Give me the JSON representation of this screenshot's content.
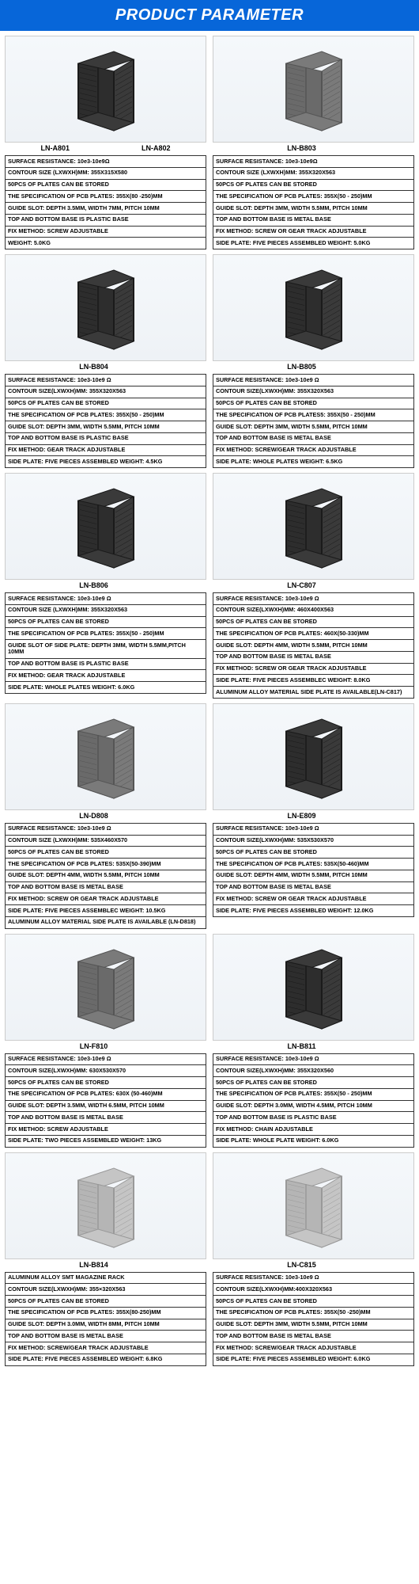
{
  "header": "PRODUCT PARAMETER",
  "products": [
    {
      "labels": [
        "LN-A801",
        "LN-A802"
      ],
      "rack_style": "dark",
      "specs": [
        "SURFACE RESISTANCE: 10e3-10e9Ω",
        "CONTOUR SIZE (LXWXH)MM: 355X315X580",
        "50PCS OF PLATES CAN BE STORED",
        "THE SPECIFICATION OF PCB PLATES: 355X(80 -250)MM",
        "GUIDE SLOT: DEPTH 3.5MM, WIDTH 7MM, PITCH 10MM",
        "TOP AND BOTTOM BASE IS PLASTIC BASE",
        "FIX METHOD: SCREW ADJUSTABLE",
        "WEIGHT: 5.0KG"
      ]
    },
    {
      "labels": [
        "LN-B803"
      ],
      "rack_style": "medium",
      "specs": [
        "SURFACE RESISTANCE: 10e3-10e9Ω",
        "CONTOUR SIZE (LXWXH)MM: 355X320X563",
        "50PCS OF PLATES CAN BE STORED",
        "THE SPECIFICATION OF PCB PLATES: 355X(50 - 250)MM",
        "GUIDE SLOT: DEPTH 3MM, WIDTH 5.5MM, PITCH 10MM",
        "TOP AND BOTTOM BASE IS METAL BASE",
        "FIX METHOD: SCREW OR GEAR TRACK ADJUSTABLE",
        "SIDE PLATE: FIVE PIECES ASSEMBLED    WEIGHT: 5.0KG"
      ]
    },
    {
      "labels": [
        "LN-B804"
      ],
      "rack_style": "dark",
      "specs": [
        "SURFACE RESISTANCE: 10e3-10e9 Ω",
        "CONTOUR SIZE(LXWXH)MM: 355X320X563",
        "50PCS OF PLATES CAN BE STORED",
        "THE SPECIFICATION OF PCB PLATES: 355X(50 - 250)MM",
        "GUIDE SLOT: DEPTH 3MM, WIDTH 5.5MM, PITCH 10MM",
        "TOP AND BOTTOM BASE IS PLASTIC BASE",
        "FIX METHOD: GEAR TRACK ADJUSTABLE",
        "SIDE PLATE: FIVE PIECES ASSEMBLED     WEIGHT: 4.5KG"
      ]
    },
    {
      "labels": [
        "LN-B805"
      ],
      "rack_style": "dark",
      "specs": [
        "SURFACE RESISTANCE: 10e3-10e9 Ω",
        "CONTOUR SIZE(LXWXH)MM: 355X320X563",
        "50PCS OF PLATES CAN BE STORED",
        "THE SPECIFICATION OF PCB PLATES5: 355X(50 - 250)MM",
        "GUIDE SLOT: DEPTH 3MM, WIDTH 5.5MM, PITCH 10MM",
        "TOP AND BOTTOM BASE IS METAL BASE",
        "FIX METHOD: SCREW/GEAR TRACK ADJUSTABLE",
        "SIDE PLATE: WHOLE PLATES     WEIGHT: 6.5KG"
      ]
    },
    {
      "labels": [
        "LN-B806"
      ],
      "rack_style": "dark",
      "specs": [
        "SURFACE RESISTANCE: 10e3-10e9 Ω",
        "CONTOUR SIZE (LXWXH)MM: 355X320X563",
        "50PCS OF PLATES CAN BE STORED",
        "THE SPECIFICATION OF PCB PLATES: 355X(50 - 250)MM",
        "GUIDE SLOT OF SIDE PLATE: DEPTH 3MM, WIDTH 5.5MM,PITCH 10MM",
        "TOP AND BOTTOM BASE IS PLASTIC BASE",
        "FIX METHOD: GEAR TRACK ADJUSTABLE",
        "SIDE PLATE: WHOLE PLATES    WEIGHT: 6.0KG"
      ]
    },
    {
      "labels": [
        "LN-C807"
      ],
      "rack_style": "dark",
      "specs": [
        "SURFACE RESISTANCE: 10e3-10e9 Ω",
        "CONTOUR SIZE(LXWXH)MM: 460X400X563",
        "50PCS OF PLATES CAN BE STORED",
        "THE SPECIFICATION OF PCB PLATES: 460X(50-330)MM",
        "GUIDE SLOT: DEPTH 4MM, WIDTH 5.5MM, PITCH 10MM",
        "TOP AND BOTTOM BASE IS METAL BASE",
        "FIX METHOD: SCREW OR GEAR TRACK ADJUSTABLE",
        "SIDE PLATE: FIVE PIECES ASSEMBLEC    WEIGHT: 8.0KG",
        "ALUMINUM ALLOY MATERIAL SIDE PLATE IS AVAILABLE(LN-C817)"
      ]
    },
    {
      "labels": [
        "LN-D808"
      ],
      "rack_style": "medium",
      "specs": [
        "SURFACE RESISTANCE: 10e3-10e9 Ω",
        "CONTOUR SIZE (LXWXH)MM: 535X460X570",
        "50PCS OF PLATES CAN BE STORED",
        "THE SPECIFICATION OF PCB PLATES: 535X(50-390)MM",
        "GUIDE SLOT: DEPTH 4MM, WIDTH 5.5MM, PITCH 10MM",
        "TOP AND BOTTOM BASE IS METAL BASE",
        "FIX METHOD: SCREW OR GEAR TRACK ADJUSTABLE",
        "SIDE PLATE: FIVE PIECES ASSEMBLEC    WEIGHT: 10.5KG",
        "ALUMINUM ALLOY MATERIAL SIDE PLATE IS AVAILABLE (LN-D818)"
      ]
    },
    {
      "labels": [
        "LN-E809"
      ],
      "rack_style": "dark",
      "specs": [
        "SURFACE RESISTANCE: 10e3-10e9 Ω",
        "CONTOUR SIZE(LXWXH)MM: 535X530X570",
        "50PCS OF PLATES CAN BE STORED",
        "THE SPECIFICATION OF PCB PLATES: 535X(50-460)MM",
        "GUIDE SLOT: DEPTH 4MM, WIDTH 5.5MM, PITCH 10MM",
        "TOP AND BOTTOM BASE IS METAL BASE",
        "FIX METHOD: SCREW OR GEAR TRACK ADJUSTABLE",
        "SIDE PLATE: FIVE PIECES ASSEMBLED    WEIGHT: 12.0KG"
      ]
    },
    {
      "labels": [
        "LN-F810"
      ],
      "rack_style": "medium",
      "specs": [
        "SURFACE RESISTANCE: 10e3-10e9 Ω",
        "CONTOUR SIZE(LXWXH)MM: 630X530X570",
        "50PCS OF PLATES CAN BE STORED",
        "THE SPECIFICATION OF PCB PLATES: 630X (50-460)MM",
        "GUIDE SLOT: DEPTH 3.5MM, WIDTH 6.5MM, PITCH 10MM",
        "TOP AND BOTTOM BASE IS METAL BASE",
        "FIX METHOD: SCREW ADJUSTABLE",
        "SIDE PLATE: TWO PIECES ASSEMBLED    WEIGHT: 13KG"
      ]
    },
    {
      "labels": [
        "LN-B811"
      ],
      "rack_style": "dark",
      "specs": [
        "SURFACE RESISTANCE: 10e3-10e9 Ω",
        "CONTOUR SIZE(LXWXH)MM: 355X320X560",
        "50PCS OF PLATES CAN BE STORED",
        "THE SPECIFICATION OF PCB PLATES: 355X(50 - 250)MM",
        "GUIDE SLOT: DEPTH 3.0MM, WIDTH 4.5MM, PITCH 10MM",
        "TOP AND BOTTOM BASE IS PLASTIC BASE",
        "FIX METHOD: CHAIN ADJUSTABLE",
        "SIDE PLATE: WHOLE PLATE    WEIGHT: 6.0KG"
      ]
    },
    {
      "labels": [
        "LN-B814"
      ],
      "rack_style": "light",
      "specs": [
        "ALUMINUM ALLOY SMT MAGAZINE RACK",
        "CONTOUR SIZE(LXWXH)MM: 355×320X563",
        "50PCS OF PLATES CAN BE STORED",
        "THE SPECIFICATION OF PCB PLATES: 355X(80-250)MM",
        "GUIDE SLOT: DEPTH 3.0MM, WIDTH 8MM, PITCH 10MM",
        "TOP AND BOTTOM BASE IS METAL BASE",
        "FIX METHOD: SCREW/GEAR TRACK ADJUSTABLE",
        "SIDE PLATE: FIVE PIECES ASSEMBLED    WEIGHT: 6.8KG"
      ]
    },
    {
      "labels": [
        "LN-C815"
      ],
      "rack_style": "light",
      "specs": [
        "SURFACE RESISTANCE: 10e3-10e9 Ω",
        "CONTOUR SIZE(LXWXH)MM:400X320X563",
        "50PCS OF PLATES CAN BE STORED",
        "THE SPECIFICATION OF PCB PLATES: 355X(50 -250)MM",
        "GUIDE SLOT: DEPTH 3MM, WIDTH 5.5MM, PITCH 10MM",
        "TOP AND BOTTOM BASE IS METAL BASE",
        "FIX METHOD: SCREW/GEAR TRACK ADJUSTABLE",
        "SIDE PLATE: FIVE PIECES ASSEMBLED    WEIGHT: 6.0KG"
      ]
    }
  ],
  "rack_colors": {
    "dark": {
      "frame": "#1a1a1a",
      "side": "#2d2d2d",
      "base": "#3a3a3a"
    },
    "medium": {
      "frame": "#555",
      "side": "#6a6a6a",
      "base": "#7a7a7a"
    },
    "light": {
      "frame": "#999",
      "side": "#b5b5b5",
      "base": "#c5c5c5"
    }
  }
}
